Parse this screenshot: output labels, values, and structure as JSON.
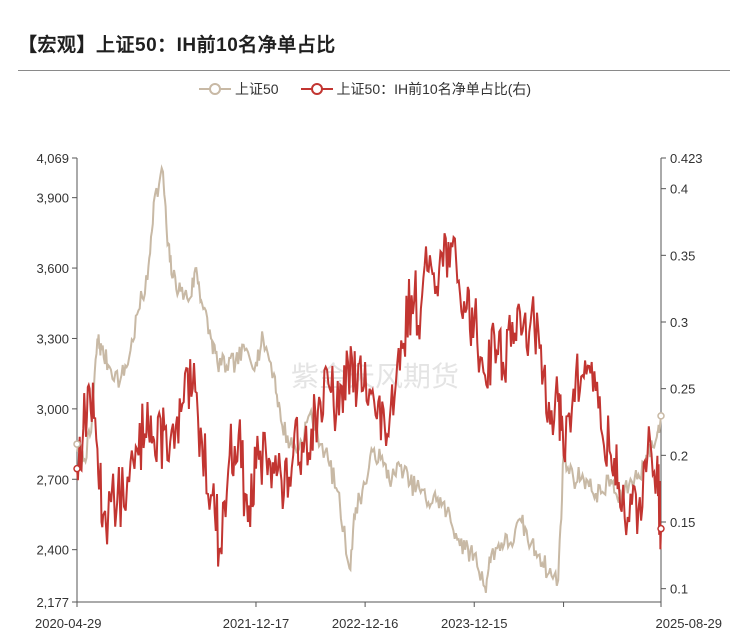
{
  "header": {
    "title": "【宏观】上证50：IH前10名净单占比"
  },
  "watermark": "紫金天风期货",
  "colors": {
    "series1": "#c8b9a5",
    "series2": "#c23531",
    "axis": "#333333",
    "grid": "#e9e9e9"
  },
  "chart_data": {
    "type": "line",
    "title": "【宏观】上证50：IH前10名净单占比",
    "x_range": [
      "2020-04-29",
      "2025-08-29"
    ],
    "x_tick_labels": [
      "2020-04-29",
      "2021-12-17",
      "2022-12-16",
      "2023-12-15",
      "2025-08-29"
    ],
    "x_tick_dates": [
      "2020-04-29",
      "2021-12-17",
      "2022-12-16",
      "2023-12-15",
      "2025-08-29"
    ],
    "y_left": {
      "range": [
        2177,
        4069
      ],
      "tick_labels": [
        "2,177",
        "2,400",
        "2,700",
        "3,000",
        "3,300",
        "3,600",
        "3,900",
        "4,069"
      ],
      "tick_values": [
        2177,
        2400,
        2700,
        3000,
        3300,
        3600,
        3900,
        4069
      ]
    },
    "y_right": {
      "range": [
        0.09,
        0.423
      ],
      "tick_labels": [
        "0.1",
        "0.15",
        "0.2",
        "0.25",
        "0.3",
        "0.35",
        "0.4",
        "0.423"
      ],
      "tick_values": [
        0.1,
        0.15,
        0.2,
        0.25,
        0.3,
        0.35,
        0.4,
        0.423
      ]
    },
    "grid": false,
    "legend_position": "top-center",
    "series": [
      {
        "name": "上证50",
        "axis": "left",
        "color": "#c8b9a5",
        "points": [
          [
            "2020-04-29",
            2850
          ],
          [
            "2020-05-20",
            2780
          ],
          [
            "2020-06-15",
            2900
          ],
          [
            "2020-07-06",
            3300
          ],
          [
            "2020-07-20",
            3250
          ],
          [
            "2020-08-15",
            3180
          ],
          [
            "2020-09-20",
            3120
          ],
          [
            "2020-10-20",
            3220
          ],
          [
            "2020-11-20",
            3420
          ],
          [
            "2020-12-20",
            3550
          ],
          [
            "2021-01-10",
            3880
          ],
          [
            "2021-02-10",
            4010
          ],
          [
            "2021-02-25",
            3700
          ],
          [
            "2021-03-15",
            3560
          ],
          [
            "2021-04-10",
            3500
          ],
          [
            "2021-05-10",
            3470
          ],
          [
            "2021-06-01",
            3600
          ],
          [
            "2021-06-20",
            3450
          ],
          [
            "2021-07-20",
            3300
          ],
          [
            "2021-08-10",
            3200
          ],
          [
            "2021-09-10",
            3180
          ],
          [
            "2021-10-10",
            3200
          ],
          [
            "2021-11-10",
            3250
          ],
          [
            "2021-12-17",
            3200
          ],
          [
            "2022-01-10",
            3300
          ],
          [
            "2022-02-15",
            3150
          ],
          [
            "2022-03-10",
            2950
          ],
          [
            "2022-04-10",
            2850
          ],
          [
            "2022-05-10",
            2830
          ],
          [
            "2022-06-15",
            2980
          ],
          [
            "2022-07-10",
            2900
          ],
          [
            "2022-08-15",
            2780
          ],
          [
            "2022-09-15",
            2650
          ],
          [
            "2022-10-25",
            2320
          ],
          [
            "2022-11-15",
            2580
          ],
          [
            "2022-12-16",
            2680
          ],
          [
            "2023-01-15",
            2830
          ],
          [
            "2023-02-15",
            2760
          ],
          [
            "2023-03-15",
            2700
          ],
          [
            "2023-04-15",
            2760
          ],
          [
            "2023-05-15",
            2680
          ],
          [
            "2023-06-15",
            2660
          ],
          [
            "2023-07-15",
            2600
          ],
          [
            "2023-08-15",
            2620
          ],
          [
            "2023-09-15",
            2560
          ],
          [
            "2023-10-15",
            2470
          ],
          [
            "2023-11-15",
            2400
          ],
          [
            "2023-12-15",
            2380
          ],
          [
            "2024-01-20",
            2240
          ],
          [
            "2024-02-10",
            2380
          ],
          [
            "2024-03-15",
            2430
          ],
          [
            "2024-04-15",
            2430
          ],
          [
            "2024-05-20",
            2520
          ],
          [
            "2024-06-20",
            2420
          ],
          [
            "2024-07-20",
            2380
          ],
          [
            "2024-08-20",
            2300
          ],
          [
            "2024-09-20",
            2270
          ],
          [
            "2024-10-08",
            2800
          ],
          [
            "2024-11-10",
            2700
          ],
          [
            "2024-12-10",
            2720
          ],
          [
            "2025-01-10",
            2650
          ],
          [
            "2025-02-10",
            2640
          ],
          [
            "2025-03-15",
            2700
          ],
          [
            "2025-04-10",
            2600
          ],
          [
            "2025-05-15",
            2680
          ],
          [
            "2025-06-15",
            2720
          ],
          [
            "2025-07-15",
            2800
          ],
          [
            "2025-08-15",
            2880
          ],
          [
            "2025-08-29",
            2970
          ]
        ]
      },
      {
        "name": "上证50：IH前10名净单占比(右)",
        "axis": "right",
        "color": "#c23531",
        "points": [
          [
            "2020-04-29",
            0.19
          ],
          [
            "2020-05-20",
            0.22
          ],
          [
            "2020-06-10",
            0.25
          ],
          [
            "2020-07-06",
            0.205
          ],
          [
            "2020-07-25",
            0.155
          ],
          [
            "2020-09-10",
            0.165
          ],
          [
            "2020-10-20",
            0.18
          ],
          [
            "2020-11-20",
            0.2
          ],
          [
            "2020-12-20",
            0.24
          ],
          [
            "2021-01-15",
            0.2
          ],
          [
            "2021-02-15",
            0.22
          ],
          [
            "2021-03-20",
            0.205
          ],
          [
            "2021-04-20",
            0.24
          ],
          [
            "2021-05-20",
            0.25
          ],
          [
            "2021-06-20",
            0.21
          ],
          [
            "2021-07-25",
            0.17
          ],
          [
            "2021-08-20",
            0.13
          ],
          [
            "2021-09-20",
            0.2
          ],
          [
            "2021-10-20",
            0.215
          ],
          [
            "2021-11-20",
            0.15
          ],
          [
            "2021-12-17",
            0.19
          ],
          [
            "2022-01-20",
            0.2
          ],
          [
            "2022-02-20",
            0.2
          ],
          [
            "2022-03-20",
            0.17
          ],
          [
            "2022-04-20",
            0.2
          ],
          [
            "2022-05-20",
            0.21
          ],
          [
            "2022-06-20",
            0.22
          ],
          [
            "2022-07-20",
            0.24
          ],
          [
            "2022-08-20",
            0.25
          ],
          [
            "2022-09-20",
            0.23
          ],
          [
            "2022-10-20",
            0.27
          ],
          [
            "2022-11-20",
            0.25
          ],
          [
            "2022-12-16",
            0.27
          ],
          [
            "2023-01-20",
            0.23
          ],
          [
            "2023-02-20",
            0.22
          ],
          [
            "2023-03-20",
            0.23
          ],
          [
            "2023-04-20",
            0.28
          ],
          [
            "2023-05-20",
            0.32
          ],
          [
            "2023-06-20",
            0.31
          ],
          [
            "2023-07-20",
            0.35
          ],
          [
            "2023-08-20",
            0.34
          ],
          [
            "2023-09-20",
            0.36
          ],
          [
            "2023-10-20",
            0.33
          ],
          [
            "2023-11-20",
            0.31
          ],
          [
            "2023-12-15",
            0.3
          ],
          [
            "2024-01-20",
            0.26
          ],
          [
            "2024-02-20",
            0.29
          ],
          [
            "2024-03-20",
            0.27
          ],
          [
            "2024-04-20",
            0.3
          ],
          [
            "2024-05-20",
            0.29
          ],
          [
            "2024-06-20",
            0.3
          ],
          [
            "2024-07-20",
            0.28
          ],
          [
            "2024-08-20",
            0.24
          ],
          [
            "2024-09-20",
            0.24
          ],
          [
            "2024-10-08",
            0.2
          ],
          [
            "2024-11-10",
            0.25
          ],
          [
            "2024-12-10",
            0.26
          ],
          [
            "2025-01-10",
            0.27
          ],
          [
            "2025-02-10",
            0.22
          ],
          [
            "2025-03-15",
            0.2
          ],
          [
            "2025-04-10",
            0.18
          ],
          [
            "2025-05-15",
            0.15
          ],
          [
            "2025-06-15",
            0.16
          ],
          [
            "2025-07-15",
            0.2
          ],
          [
            "2025-08-15",
            0.19
          ],
          [
            "2025-08-29",
            0.145
          ]
        ]
      }
    ]
  }
}
